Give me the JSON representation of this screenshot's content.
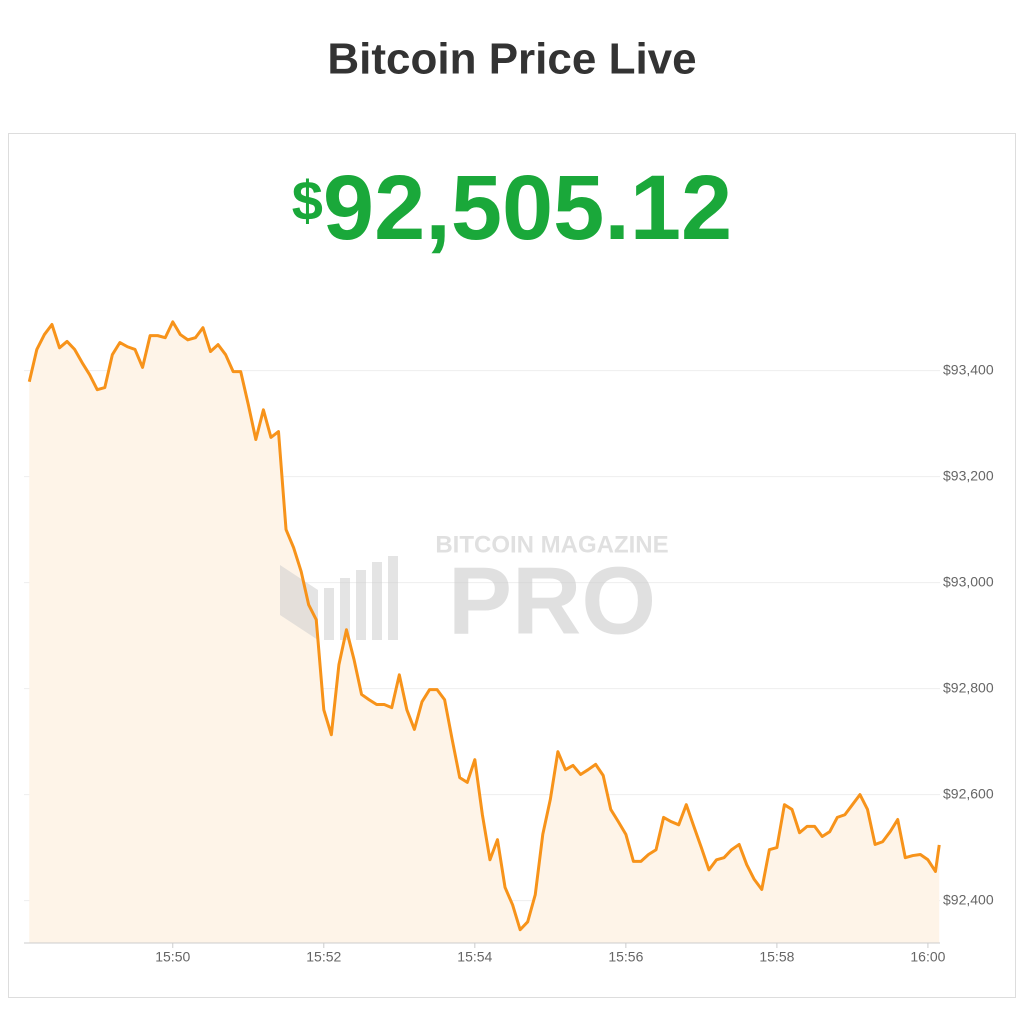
{
  "chart_data": {
    "type": "line",
    "title": "Bitcoin Price Live",
    "currency": "$",
    "price": "92,505.12",
    "watermark": [
      "BITCOIN MAGAZINE",
      "PRO"
    ],
    "color": "#f7931a",
    "fill_color": "#fef4e8",
    "price_color": "#1aa83a",
    "grid": true,
    "xlim": [
      948.03,
      960.16
    ],
    "ylim": [
      92320,
      93520
    ],
    "xticks": [
      {
        "value": 950,
        "label": "15:50"
      },
      {
        "value": 952,
        "label": "15:52"
      },
      {
        "value": 954,
        "label": "15:54"
      },
      {
        "value": 956,
        "label": "15:56"
      },
      {
        "value": 958,
        "label": "15:58"
      },
      {
        "value": 960,
        "label": "16:00"
      }
    ],
    "yticks": [
      {
        "value": 92400,
        "label": "$92,400"
      },
      {
        "value": 92600,
        "label": "$92,600"
      },
      {
        "value": 92800,
        "label": "$92,800"
      },
      {
        "value": 93000,
        "label": "$93,000"
      },
      {
        "value": 93200,
        "label": "$93,200"
      },
      {
        "value": 93400,
        "label": "$93,400"
      }
    ],
    "x": [
      948.1,
      948.2,
      948.3,
      948.4,
      948.5,
      948.6,
      948.7,
      948.8,
      948.9,
      949.0,
      949.1,
      949.2,
      949.3,
      949.4,
      949.5,
      949.6,
      949.7,
      949.8,
      949.9,
      950.0,
      950.1,
      950.2,
      950.3,
      950.4,
      950.5,
      950.6,
      950.7,
      950.8,
      950.9,
      951.0,
      951.1,
      951.2,
      951.3,
      951.4,
      951.5,
      951.6,
      951.7,
      951.8,
      951.9,
      952.0,
      952.1,
      952.2,
      952.3,
      952.4,
      952.5,
      952.6,
      952.7,
      952.8,
      952.9,
      953.0,
      953.1,
      953.2,
      953.3,
      953.4,
      953.5,
      953.6,
      953.7,
      953.8,
      953.9,
      954.0,
      954.1,
      954.2,
      954.3,
      954.4,
      954.5,
      954.6,
      954.7,
      954.8,
      954.9,
      955.0,
      955.1,
      955.2,
      955.3,
      955.4,
      955.5,
      955.6,
      955.7,
      955.8,
      955.9,
      956.0,
      956.1,
      956.2,
      956.3,
      956.4,
      956.5,
      956.6,
      956.7,
      956.8,
      956.9,
      957.0,
      957.1,
      957.2,
      957.3,
      957.4,
      957.5,
      957.6,
      957.7,
      957.8,
      957.9,
      958.0,
      958.1,
      958.2,
      958.3,
      958.4,
      958.5,
      958.6,
      958.7,
      958.8,
      958.9,
      959.0,
      959.1,
      959.2,
      959.3,
      959.4,
      959.5,
      959.6,
      959.7,
      959.8,
      959.9,
      960.0,
      960.1,
      960.15
    ],
    "values": [
      93379,
      93440,
      93468,
      93487,
      93443,
      93455,
      93440,
      93415,
      93392,
      93364,
      93368,
      93430,
      93453,
      93445,
      93440,
      93406,
      93466,
      93466,
      93462,
      93492,
      93468,
      93458,
      93462,
      93481,
      93436,
      93449,
      93430,
      93398,
      93398,
      93336,
      93270,
      93326,
      93274,
      93285,
      93100,
      93066,
      93021,
      92958,
      92930,
      92760,
      92713,
      92845,
      92911,
      92855,
      92789,
      92779,
      92770,
      92770,
      92764,
      92826,
      92760,
      92723,
      92775,
      92798,
      92798,
      92779,
      92704,
      92632,
      92623,
      92666,
      92562,
      92477,
      92515,
      92425,
      92392,
      92345,
      92360,
      92411,
      92525,
      92591,
      92681,
      92647,
      92655,
      92638,
      92647,
      92657,
      92636,
      92572,
      92549,
      92525,
      92474,
      92474,
      92487,
      92496,
      92557,
      92549,
      92543,
      92581,
      92540,
      92500,
      92458,
      92477,
      92481,
      92496,
      92506,
      92468,
      92440,
      92421,
      92496,
      92500,
      92581,
      92572,
      92528,
      92540,
      92540,
      92521,
      92530,
      92557,
      92562,
      92581,
      92600,
      92572,
      92506,
      92511,
      92530,
      92553,
      92481,
      92485,
      92487,
      92477,
      92455,
      92505
    ]
  }
}
